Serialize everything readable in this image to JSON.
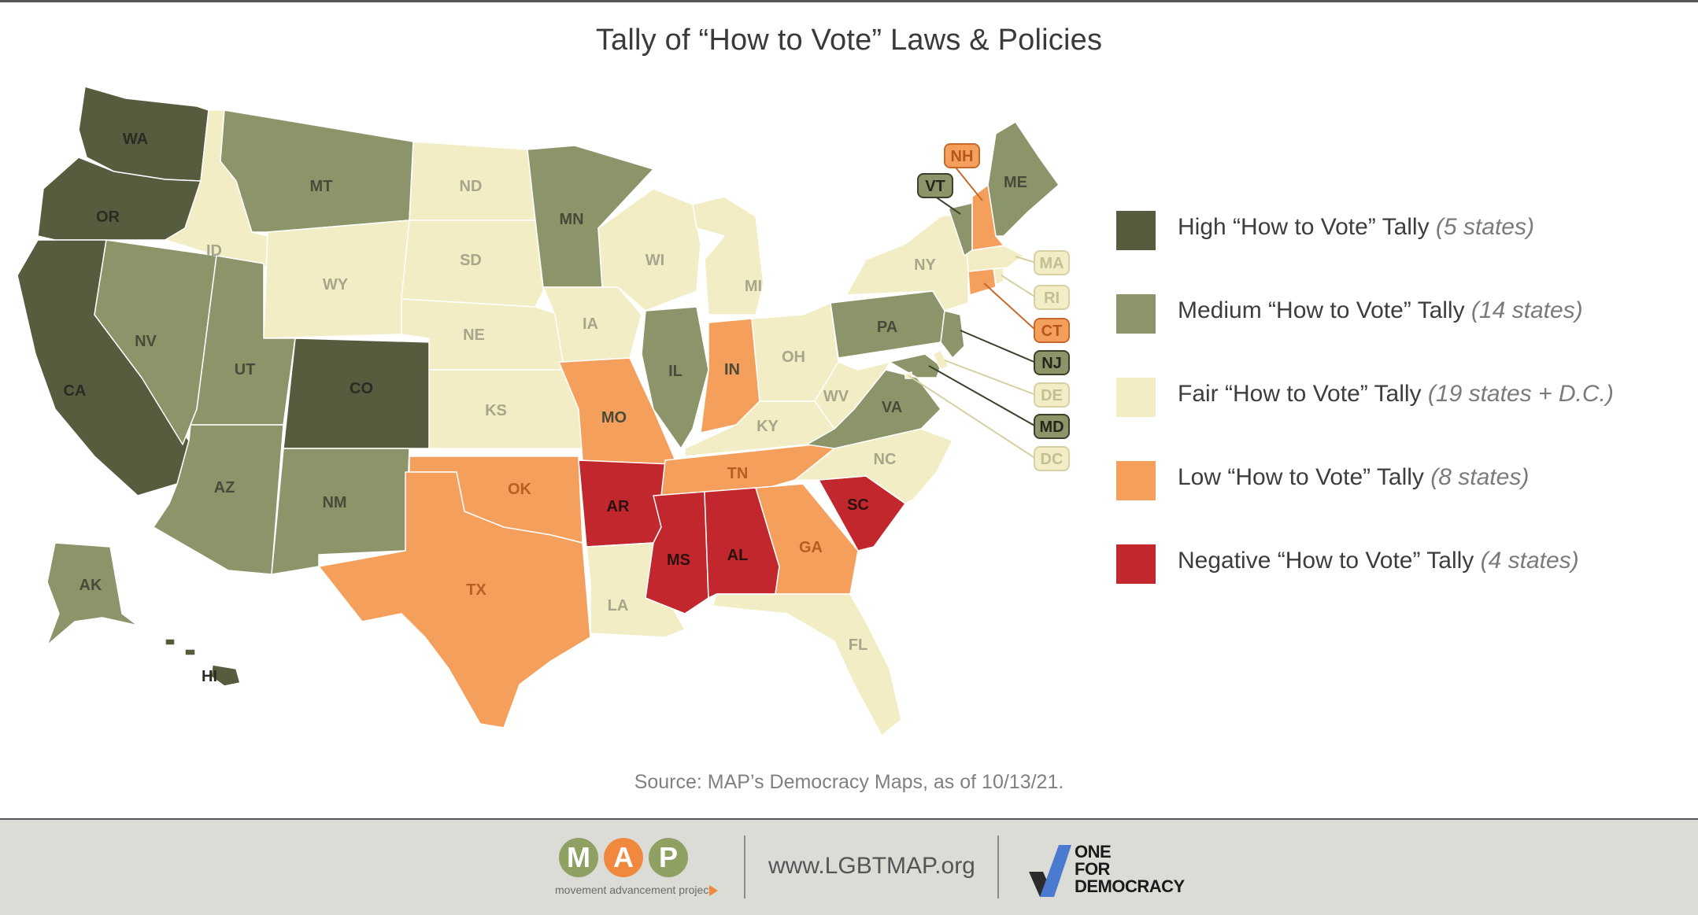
{
  "title": "Tally of “How to Vote” Laws & Policies",
  "colors": {
    "High": "#575c3f",
    "Medium": "#8c956a",
    "Fair": "#f2edc4",
    "Low": "#f59f5c",
    "Negative": "#c1272d",
    "border": "#ffffff"
  },
  "legend": [
    {
      "key": "High",
      "label": "High “How to Vote” Tally",
      "note": "(5 states)"
    },
    {
      "key": "Medium",
      "label": "Medium “How to Vote” Tally",
      "note": "(14 states)"
    },
    {
      "key": "Fair",
      "label": "Fair “How to Vote” Tally",
      "note": "(19 states + D.C.)"
    },
    {
      "key": "Low",
      "label": "Low “How to Vote” Tally",
      "note": "(8 states)"
    },
    {
      "key": "Negative",
      "label": "Negative “How to Vote” Tally",
      "note": "(4 states)"
    }
  ],
  "states": {
    "WA": "High",
    "OR": "High",
    "CA": "High",
    "CO": "High",
    "HI": "High",
    "MT": "Medium",
    "NV": "Medium",
    "UT": "Medium",
    "AZ": "Medium",
    "NM": "Medium",
    "MN": "Medium",
    "IL": "Medium",
    "PA": "Medium",
    "VA": "Medium",
    "VT": "Medium",
    "ME": "Medium",
    "NJ": "Medium",
    "MD": "Medium",
    "AK": "Medium",
    "ID": "Fair",
    "WY": "Fair",
    "ND": "Fair",
    "SD": "Fair",
    "NE": "Fair",
    "KS": "Fair",
    "IA": "Fair",
    "WI": "Fair",
    "MI": "Fair",
    "OH": "Fair",
    "KY": "Fair",
    "WV": "Fair",
    "NC": "Fair",
    "LA": "Fair",
    "FL": "Fair",
    "NY": "Fair",
    "MA": "Fair",
    "RI": "Fair",
    "DE": "Fair",
    "DC": "Fair",
    "TX": "Low",
    "OK": "Low",
    "MO": "Low",
    "IN": "Low",
    "TN": "Low",
    "GA": "Low",
    "NH": "Low",
    "CT": "Low",
    "AR": "Negative",
    "MS": "Negative",
    "AL": "Negative",
    "SC": "Negative"
  },
  "source": "Source: MAP’s Democracy Maps, as of 10/13/21.",
  "footer": {
    "map_letters": [
      "M",
      "A",
      "P"
    ],
    "map_letter_colors": [
      "#8fa063",
      "#f0883d",
      "#8fa063"
    ],
    "map_subtitle": "movement advancement project",
    "url": "www.LGBTMAP.org",
    "ofd_lines": [
      "ONE",
      "FOR",
      "DEMOCRACY"
    ]
  }
}
